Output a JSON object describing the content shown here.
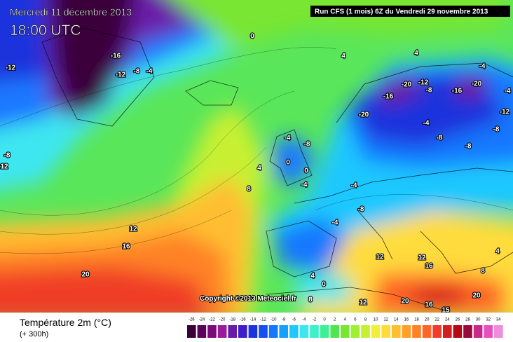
{
  "header": {
    "date": "Mercredi 11 décembre 2013",
    "time": "18:00 UTC",
    "run": "Run CFS (1 mois) 6Z du Vendredi 29 novembre 2013"
  },
  "copyright": "Copyright ©2013 Meteociel.fr",
  "map_labels": [
    0,
    -16,
    -12,
    -12,
    -8,
    -4,
    4,
    4,
    -4,
    -20,
    -12,
    -20,
    -16,
    -16,
    -8,
    -4,
    -20,
    -12,
    -4,
    -8,
    -8,
    -8,
    -4,
    -8,
    0,
    4,
    0,
    -4,
    8,
    -4,
    -8,
    -4,
    12,
    16,
    20,
    12,
    12,
    16,
    8,
    4,
    4,
    0,
    8,
    12,
    20,
    16,
    20,
    15,
    -8,
    12
  ],
  "legend": {
    "title": "Température 2m (°C)",
    "subtitle": "(+ 300h)",
    "ticks": [
      -26,
      -24,
      -22,
      -20,
      -18,
      -16,
      -14,
      -12,
      -10,
      -8,
      -6,
      -4,
      -2,
      0,
      2,
      4,
      6,
      8,
      10,
      12,
      14,
      16,
      18,
      20,
      22,
      24,
      26,
      28,
      30,
      32,
      34
    ],
    "colors": [
      "#3a003a",
      "#5a005a",
      "#7a0a7a",
      "#9a1a9a",
      "#6a1aa8",
      "#3c1ec8",
      "#1e32dc",
      "#1450f0",
      "#1478ff",
      "#14a0ff",
      "#1ec8ff",
      "#3ce6f0",
      "#3cf0c8",
      "#3cf096",
      "#50e650",
      "#78e632",
      "#a0f032",
      "#c8f032",
      "#f0f03c",
      "#ffdc3c",
      "#ffbe32",
      "#ffa028",
      "#ff8228",
      "#ff6428",
      "#f03c28",
      "#d21e1e",
      "#b40a14",
      "#960a3c",
      "#c8288c",
      "#e650be",
      "#f08cdc"
    ]
  }
}
